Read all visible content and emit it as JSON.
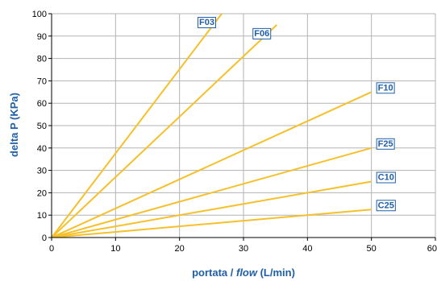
{
  "chart_data": {
    "type": "line",
    "xlabel": {
      "prefix": "portata / ",
      "italic": "flow",
      "suffix": " (L/min)"
    },
    "ylabel": "delta P (KPa)",
    "xlim": [
      0,
      60
    ],
    "ylim": [
      0,
      100
    ],
    "x_ticks": [
      0,
      10,
      20,
      30,
      40,
      50,
      60
    ],
    "y_ticks": [
      0,
      10,
      20,
      30,
      40,
      50,
      60,
      70,
      80,
      90,
      100
    ],
    "grid": true,
    "line_color": "#f5c02a",
    "label_color": "#1f5fa8",
    "grid_color": "#b3b3b3",
    "series": [
      {
        "name": "F03",
        "x": [
          0,
          26.6
        ],
        "y": [
          0,
          100
        ]
      },
      {
        "name": "F06",
        "x": [
          0,
          35.2
        ],
        "y": [
          0,
          95
        ]
      },
      {
        "name": "F10",
        "x": [
          0,
          50
        ],
        "y": [
          0,
          65
        ]
      },
      {
        "name": "F25",
        "x": [
          0,
          50
        ],
        "y": [
          0,
          40
        ]
      },
      {
        "name": "C10",
        "x": [
          0,
          50
        ],
        "y": [
          0,
          25
        ]
      },
      {
        "name": "C25",
        "x": [
          0,
          50
        ],
        "y": [
          0,
          12.5
        ]
      }
    ]
  }
}
